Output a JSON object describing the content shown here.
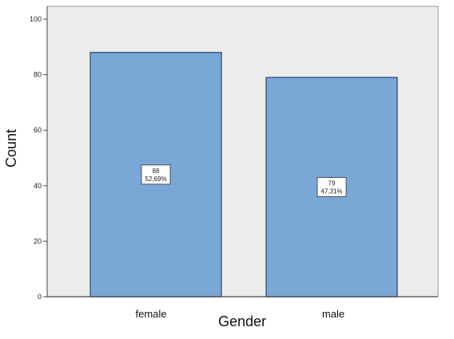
{
  "chart_data": {
    "type": "bar",
    "categories": [
      "female",
      "male"
    ],
    "values": [
      88,
      79
    ],
    "percent_labels": [
      "52,69%",
      "47,31%"
    ],
    "title": "",
    "xlabel": "Gender",
    "ylabel": "Count",
    "ylim": [
      0,
      100
    ],
    "yticks": [
      0,
      20,
      40,
      60,
      80,
      100
    ],
    "grid": false,
    "legend": "none",
    "colors": {
      "plot_background": "#ececec",
      "bar_fill": "#79a7d6",
      "bar_stroke": "#2f4f7a",
      "axis": "#444444"
    }
  }
}
